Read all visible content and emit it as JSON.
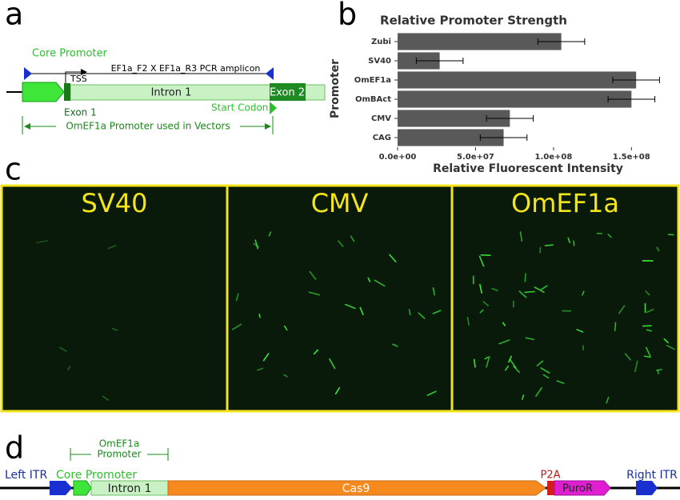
{
  "panel_labels": [
    "a",
    "b",
    "c",
    "d"
  ],
  "panel_a": {
    "core_promoter": "Core Promoter",
    "amplicon": "EF1a_F2 X EF1a_R3 PCR amplicon",
    "tss": "TSS",
    "intron": "Intron 1",
    "exon1": "Exon 1",
    "exon2": "Exon 2",
    "start_codon": "Start Codon",
    "promoter_span": "OmEF1a Promoter used in Vectors"
  },
  "chart_data": {
    "type": "bar",
    "orientation": "horizontal",
    "title": "Relative Promoter Strength",
    "x_label": "Relative Fluorescent Intensity",
    "y_label": "Promoter",
    "categories": [
      "Zubi",
      "SV40",
      "OmEF1a",
      "OmBAct",
      "CMV",
      "CAG"
    ],
    "values": [
      105000000,
      27000000,
      153000000,
      150000000,
      72000000,
      68000000
    ],
    "errors": [
      15000000,
      15000000,
      15000000,
      15000000,
      15000000,
      15000000
    ],
    "color": "#595959",
    "xlim": [
      0,
      176000000
    ],
    "xticks": [
      {
        "value": 0,
        "label": "0.0e+00"
      },
      {
        "value": 50000000,
        "label": "5.0e+07"
      },
      {
        "value": 100000000,
        "label": "1.0e+08"
      },
      {
        "value": 150000000,
        "label": "1.5e+08"
      }
    ]
  },
  "panel_c": {
    "images": [
      "SV40",
      "CMV",
      "OmEF1a"
    ]
  },
  "panel_d": {
    "left_itr": "Left ITR",
    "core_promoter": "Core Promoter",
    "intron": "Intron 1",
    "cas9": "Cas9",
    "p2a": "P2A",
    "puror": "PuroR",
    "right_itr": "Right ITR",
    "promoter_bracket": [
      "OmEF1a",
      "Promoter"
    ]
  }
}
